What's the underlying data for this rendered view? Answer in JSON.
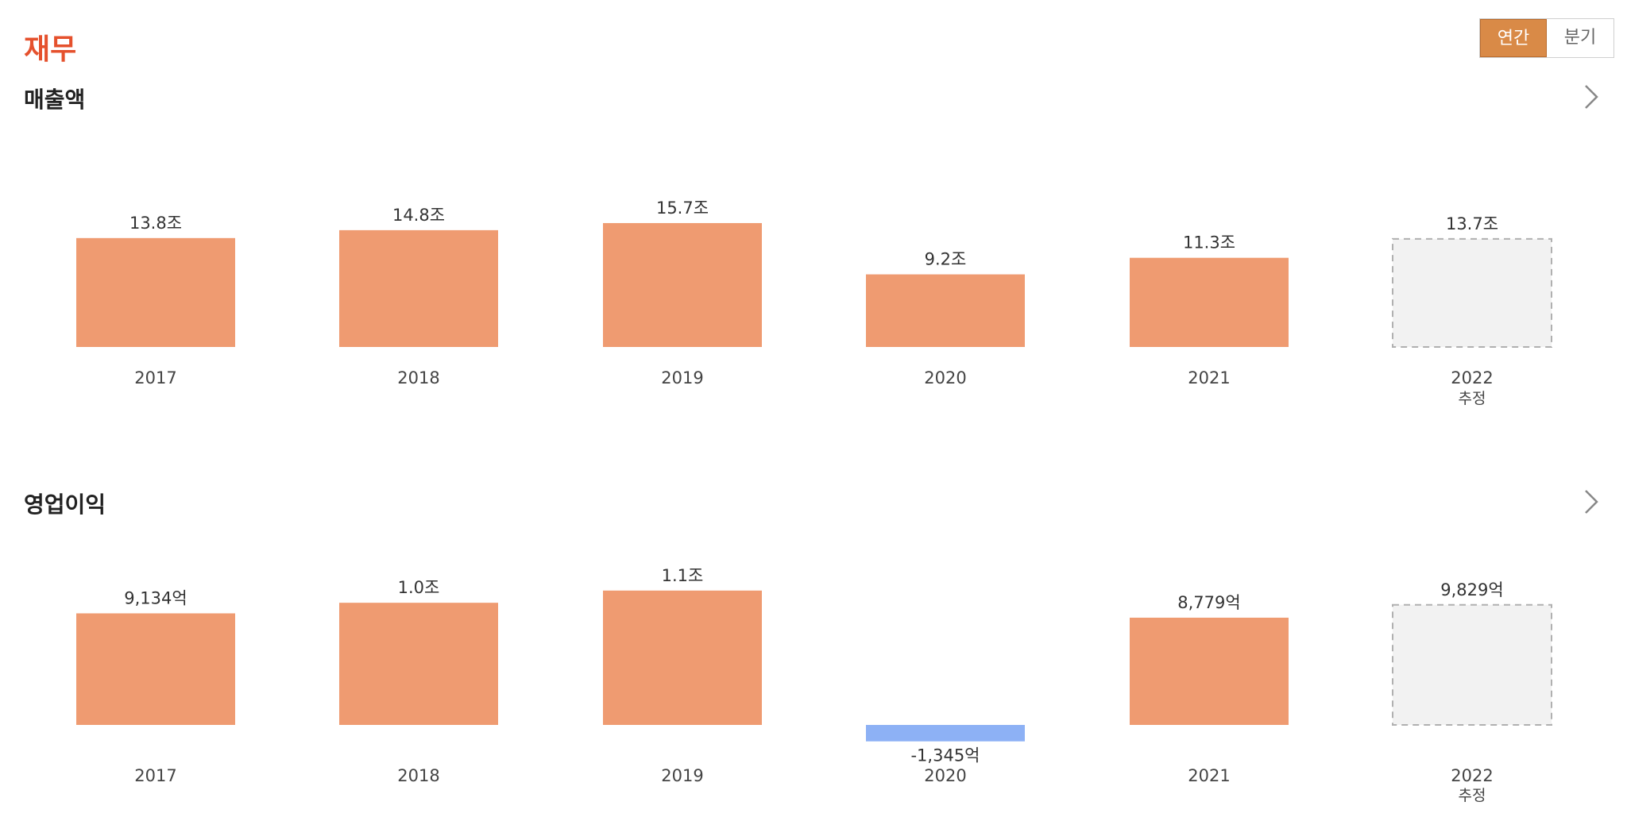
{
  "section": {
    "title": "재무"
  },
  "period_toggle": {
    "annual_label": "연간",
    "quarterly_label": "분기",
    "selected": "연간"
  },
  "colors": {
    "positive": "#ef9b71",
    "negative": "#8db1f5",
    "estimate_fill": "#f2f2f2",
    "estimate_border": "#b0b0b0",
    "accent": "#e5512d"
  },
  "icons": {
    "more": "chevron-right-icon"
  },
  "chart_data": [
    {
      "type": "bar",
      "title": "매출액",
      "categories": [
        "2017",
        "2018",
        "2019",
        "2020",
        "2021",
        "2022"
      ],
      "category_sublabels": [
        "",
        "",
        "",
        "",
        "",
        "추정"
      ],
      "values": [
        13.8,
        14.8,
        15.7,
        9.2,
        11.3,
        13.7
      ],
      "unit": "조",
      "value_labels": [
        "13.8조",
        "14.8조",
        "15.7조",
        "9.2조",
        "11.3조",
        "13.7조"
      ],
      "estimate": [
        false,
        false,
        false,
        false,
        false,
        true
      ],
      "ylim": [
        0,
        16.5
      ]
    },
    {
      "type": "bar",
      "title": "영업이익",
      "categories": [
        "2017",
        "2018",
        "2019",
        "2020",
        "2021",
        "2022"
      ],
      "category_sublabels": [
        "",
        "",
        "",
        "",
        "",
        "추정"
      ],
      "values": [
        9134,
        10000,
        11000,
        -1345,
        8779,
        9829
      ],
      "unit": "억",
      "value_labels": [
        "9,134억",
        "1.0조",
        "1.1조",
        "-1,345억",
        "8,779억",
        "9,829억"
      ],
      "estimate": [
        false,
        false,
        false,
        false,
        false,
        true
      ],
      "ylim": [
        -1345,
        11700
      ]
    }
  ]
}
